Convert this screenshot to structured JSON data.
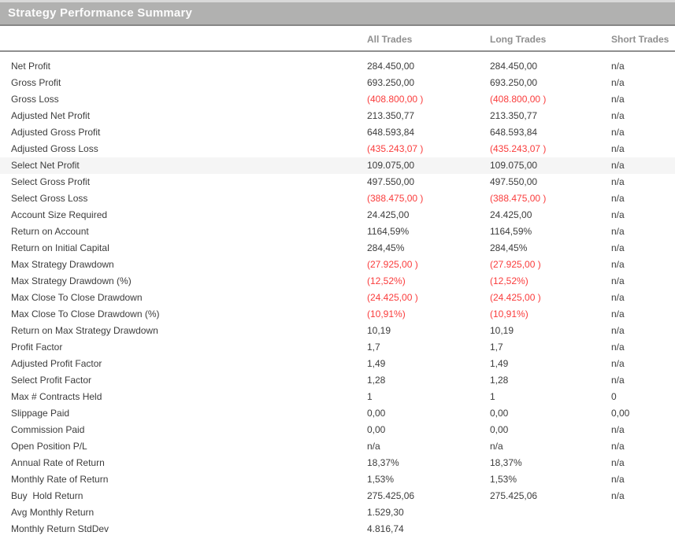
{
  "title": "Strategy Performance Summary",
  "columns": {
    "all": "All Trades",
    "long": "Long Trades",
    "short": "Short Trades"
  },
  "colors": {
    "title_bar_bg": "#b1b1b0",
    "title_text": "#fcfcfc",
    "column_header_text": "#8f8f8f",
    "body_text": "#3c3c3c",
    "negative_value": "#fa3c3c",
    "highlight_row_bg": "#f5f5f5"
  },
  "rows": [
    {
      "label": "Net Profit",
      "all": "284.450,00",
      "long": "284.450,00",
      "short": "n/a"
    },
    {
      "label": "Gross Profit",
      "all": "693.250,00",
      "long": "693.250,00",
      "short": "n/a"
    },
    {
      "label": "Gross Loss",
      "all": "(408.800,00 )",
      "long": "(408.800,00 )",
      "short": "n/a"
    },
    {
      "label": "Adjusted Net Profit",
      "all": "213.350,77",
      "long": "213.350,77",
      "short": "n/a"
    },
    {
      "label": "Adjusted Gross Profit",
      "all": "648.593,84",
      "long": "648.593,84",
      "short": "n/a"
    },
    {
      "label": "Adjusted Gross Loss",
      "all": "(435.243,07 )",
      "long": "(435.243,07 )",
      "short": "n/a"
    },
    {
      "label": "Select Net Profit",
      "all": "109.075,00",
      "long": "109.075,00",
      "short": "n/a",
      "highlight": true
    },
    {
      "label": "Select Gross Profit",
      "all": "497.550,00",
      "long": "497.550,00",
      "short": "n/a"
    },
    {
      "label": "Select Gross Loss",
      "all": "(388.475,00 )",
      "long": "(388.475,00 )",
      "short": "n/a"
    },
    {
      "label": "Account Size Required",
      "all": "24.425,00",
      "long": "24.425,00",
      "short": "n/a"
    },
    {
      "label": "Return on Account",
      "all": "1164,59%",
      "long": "1164,59%",
      "short": "n/a"
    },
    {
      "label": "Return on Initial Capital",
      "all": "284,45%",
      "long": "284,45%",
      "short": "n/a"
    },
    {
      "label": "Max Strategy Drawdown",
      "all": "(27.925,00 )",
      "long": "(27.925,00 )",
      "short": "n/a"
    },
    {
      "label": "Max Strategy Drawdown (%)",
      "all": "(12,52%)",
      "long": "(12,52%)",
      "short": "n/a"
    },
    {
      "label": "Max Close To Close Drawdown",
      "all": "(24.425,00 )",
      "long": "(24.425,00 )",
      "short": "n/a"
    },
    {
      "label": "Max Close To Close Drawdown (%)",
      "all": "(10,91%)",
      "long": "(10,91%)",
      "short": "n/a"
    },
    {
      "label": "Return on Max Strategy Drawdown",
      "all": "10,19",
      "long": "10,19",
      "short": "n/a"
    },
    {
      "label": "Profit Factor",
      "all": "1,7",
      "long": "1,7",
      "short": "n/a"
    },
    {
      "label": "Adjusted Profit Factor",
      "all": "1,49",
      "long": "1,49",
      "short": "n/a"
    },
    {
      "label": "Select Profit Factor",
      "all": "1,28",
      "long": "1,28",
      "short": "n/a"
    },
    {
      "label": "Max # Contracts Held",
      "all": "1",
      "long": "1",
      "short": "0"
    },
    {
      "label": "Slippage Paid",
      "all": "0,00",
      "long": "0,00",
      "short": "0,00"
    },
    {
      "label": "Commission Paid",
      "all": "0,00",
      "long": "0,00",
      "short": "n/a"
    },
    {
      "label": "Open Position P/L",
      "all": "n/a",
      "long": "n/a",
      "short": "n/a"
    },
    {
      "label": "Annual Rate of Return",
      "all": "18,37%",
      "long": "18,37%",
      "short": "n/a"
    },
    {
      "label": "Monthly Rate of Return",
      "all": "1,53%",
      "long": "1,53%",
      "short": "n/a"
    },
    {
      "label": "Buy  Hold Return",
      "all": "275.425,06",
      "long": "275.425,06",
      "short": "n/a"
    },
    {
      "label": "Avg Monthly Return",
      "all": "1.529,30",
      "long": "",
      "short": ""
    },
    {
      "label": "Monthly Return StdDev",
      "all": "4.816,74",
      "long": "",
      "short": ""
    }
  ]
}
